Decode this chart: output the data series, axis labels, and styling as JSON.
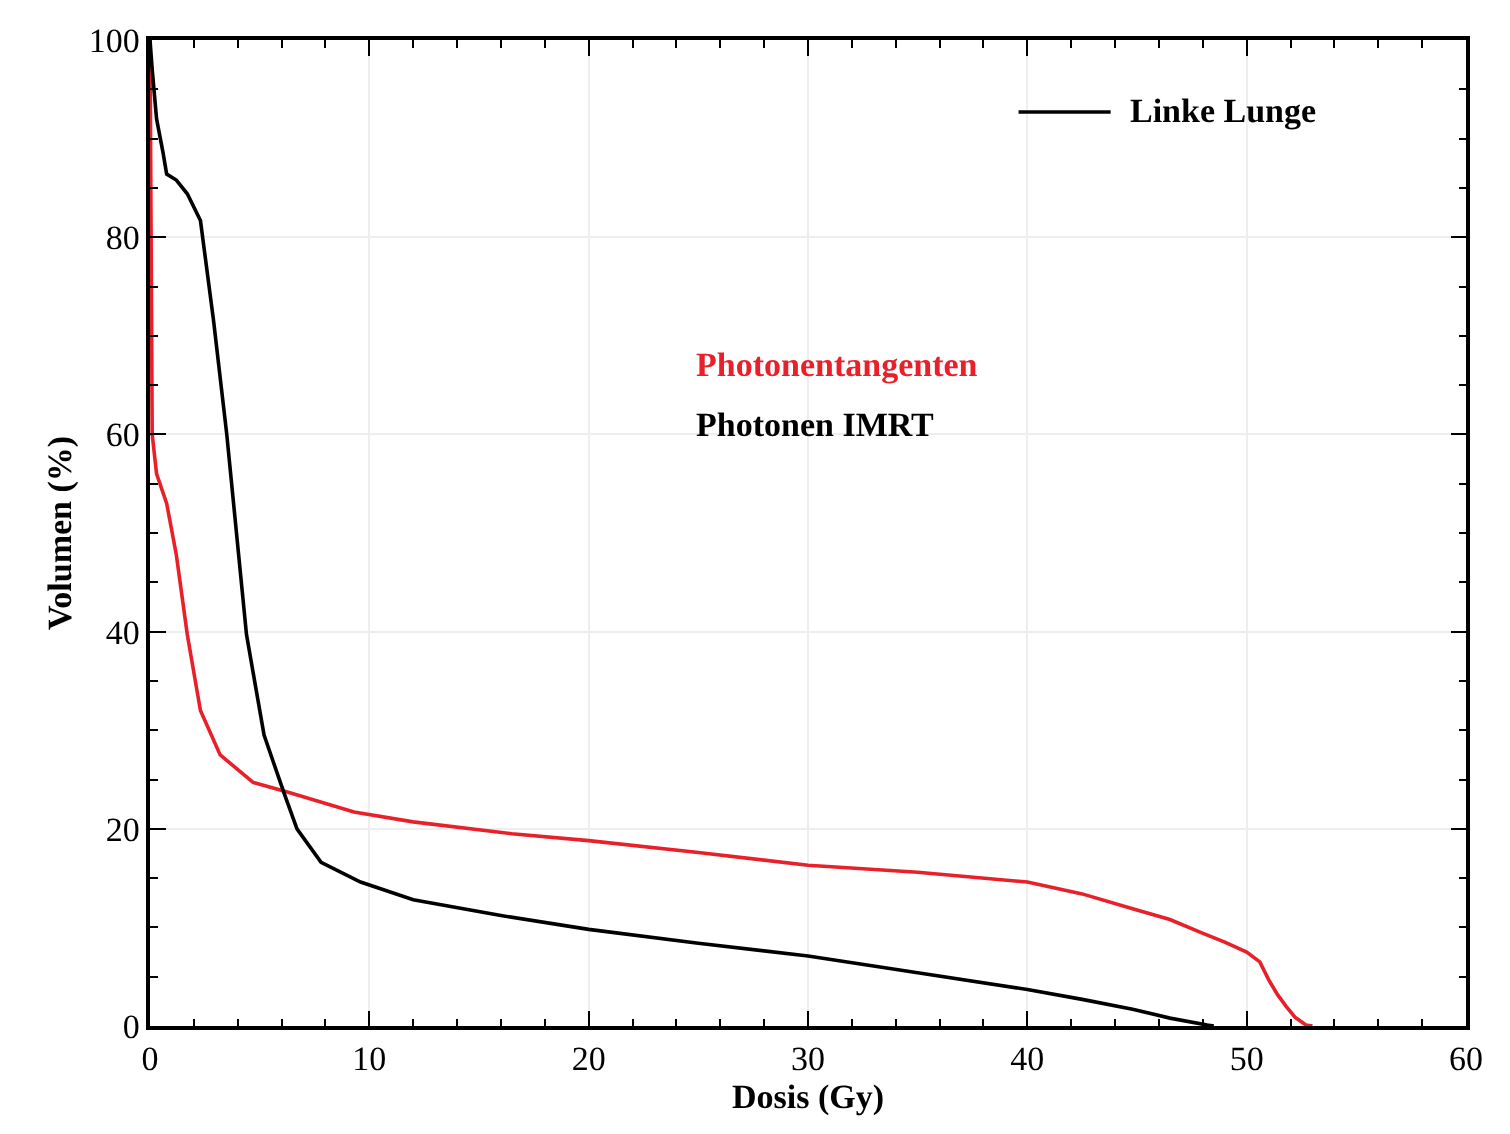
{
  "chart_data": {
    "type": "line",
    "xlabel": "Dosis (Gy)",
    "ylabel": "Volumen (%)",
    "legend_title": "Linke Lunge",
    "xlim": [
      0,
      60
    ],
    "xticks": [
      0,
      10,
      20,
      30,
      40,
      50,
      60
    ],
    "ylim": [
      0,
      100
    ],
    "yticks": [
      0,
      20,
      40,
      60,
      80,
      100
    ],
    "grid": true,
    "marker": "none",
    "line_style": "solid",
    "series": [
      {
        "name": "Photonentangenten",
        "color": "#e8202a",
        "x": [
          0,
          0.05,
          0.1,
          0.3,
          0.76,
          1.2,
          1.7,
          2.3,
          3.2,
          4.7,
          6.3,
          9.3,
          12,
          16.5,
          20,
          25,
          30,
          35,
          40,
          42.5,
          44.8,
          46.5,
          47.9,
          49,
          50,
          50.6,
          51,
          51.4,
          51.8,
          52.2,
          52.7,
          53
        ],
        "values": [
          100,
          80,
          60,
          56,
          53,
          47.8,
          39.7,
          32,
          27.5,
          24.7,
          23.7,
          21.7,
          20.7,
          19.5,
          18.8,
          17.6,
          16.3,
          15.6,
          14.6,
          13.4,
          11.9,
          10.8,
          9.5,
          8.5,
          7.5,
          6.5,
          4.7,
          3.2,
          2,
          0.9,
          0.1,
          0
        ]
      },
      {
        "name": "Photonen IMRT",
        "color": "#000000",
        "x": [
          0,
          0.1,
          0.3,
          0.6,
          0.76,
          1.2,
          1.7,
          2.3,
          2.9,
          3.5,
          4.4,
          5.2,
          6.1,
          6.7,
          7.8,
          9.6,
          12,
          16,
          20,
          25,
          30,
          35,
          40,
          42.5,
          44.8,
          46.5,
          48.2,
          48.5
        ],
        "values": [
          100,
          97,
          92,
          88.5,
          86.4,
          85.8,
          84.4,
          81.7,
          71.5,
          60,
          39.7,
          29.5,
          23.7,
          20,
          16.6,
          14.6,
          12.8,
          11.2,
          9.8,
          8.4,
          7.1,
          5.4,
          3.7,
          2.7,
          1.7,
          0.8,
          0.1,
          0
        ]
      }
    ]
  }
}
